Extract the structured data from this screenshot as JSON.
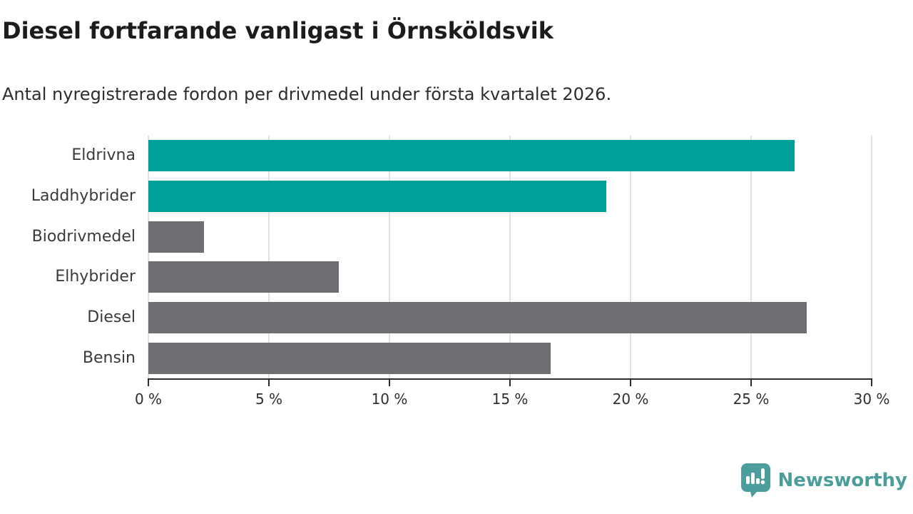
{
  "chart_data": {
    "type": "bar",
    "orientation": "horizontal",
    "title": "Diesel fortfarande vanligast i Örnsköldsvik",
    "subtitle": "Antal nyregistrerade fordon per drivmedel under första kvartalet 2026.",
    "categories": [
      "Eldrivna",
      "Laddhybrider",
      "Biodrivmedel",
      "Elhybrider",
      "Diesel",
      "Bensin"
    ],
    "values": [
      26.8,
      19.0,
      2.3,
      7.9,
      27.3,
      16.7
    ],
    "unit": "%",
    "xlim": [
      0,
      30
    ],
    "x_ticks": [
      "0 %",
      "5 %",
      "10 %",
      "15 %",
      "20 %",
      "25 %",
      "30 %"
    ],
    "bar_colors": [
      "#00a09a",
      "#00a09a",
      "#6d6d72",
      "#6d6d72",
      "#6d6d72",
      "#6d6d72"
    ],
    "accent_color": "#00a09a",
    "neutral_color": "#6d6d72",
    "grid": "vertical",
    "legend": "none"
  },
  "footer": {
    "brand": "Newsworthy",
    "brand_color": "#4a9d9a"
  }
}
